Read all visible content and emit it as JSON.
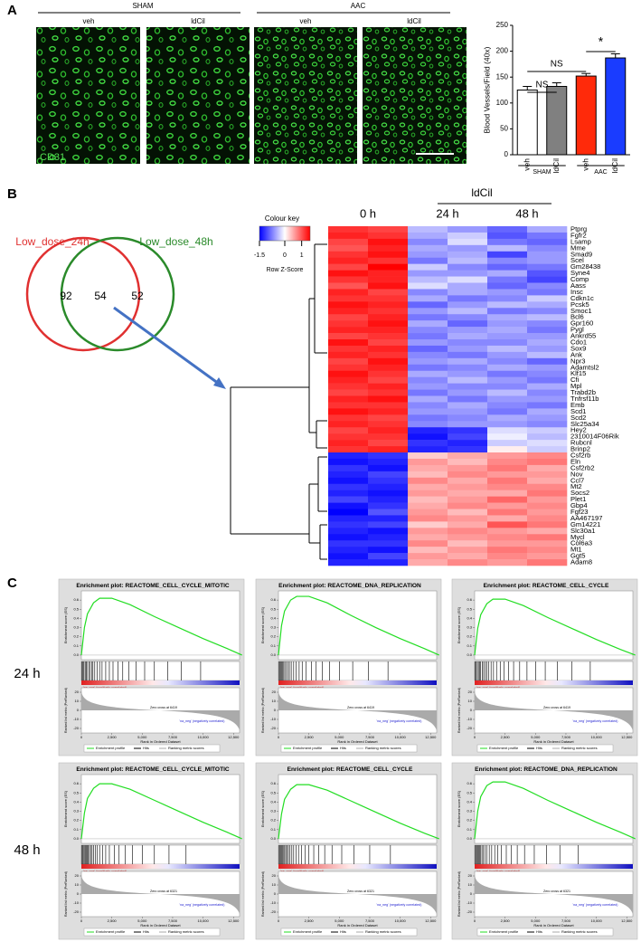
{
  "panel_a": {
    "label": "A",
    "groups": [
      "SHAM",
      "AAC"
    ],
    "images": [
      "veh",
      "ldCil",
      "veh",
      "ldCil"
    ],
    "stain": "CD31"
  },
  "chart_data": {
    "type": "bar",
    "y_label": "Blood Vessels/Field (40x)",
    "categories": [
      "veh",
      "ldCil",
      "veh",
      "ldCil"
    ],
    "values": [
      125,
      132,
      152,
      187
    ],
    "errors": [
      7,
      7,
      5,
      8
    ],
    "colors": [
      "#ffffff",
      "#808080",
      "#ff2a0a",
      "#1a3cff"
    ],
    "group_labels": [
      "SHAM",
      "AAC"
    ],
    "annotations": [
      "NS",
      "NS",
      "*"
    ],
    "ylim": [
      0,
      250
    ],
    "yticks": [
      0,
      50,
      100,
      150,
      200,
      250
    ]
  },
  "panel_b": {
    "label": "B",
    "venn": {
      "sets": [
        "Low_dose_24h",
        "Low_dose_48h"
      ],
      "only_first": "92",
      "both": "54",
      "only_second": "52"
    },
    "key": {
      "title": "Colour key",
      "label": "Row Z-Score",
      "lim": [
        -1.5,
        1.5
      ],
      "ticks": [
        -1.5,
        0,
        1
      ]
    },
    "heatmap": {
      "treatment": "ldCil",
      "columns": [
        "0 h",
        "24 h",
        "48 h"
      ],
      "genes": [
        "Ptprg",
        "Fgfr2",
        "Lsamp",
        "Mme",
        "Smad9",
        "Scel",
        "Gm28438",
        "Syne4",
        "Comp",
        "Aass",
        "Insc",
        "Cdkn1c",
        "Pcsk5",
        "Smoc1",
        "Bcl6",
        "Gpr160",
        "Pygl",
        "Ankrd55",
        "Cdo1",
        "Sox9",
        "Ank",
        "Npr3",
        "Adamtsl2",
        "Klf15",
        "Cfi",
        "Mpl",
        "Trabd2b",
        "Tnfrsf11b",
        "Emb",
        "Scd1",
        "Scd2",
        "Slc25a34",
        "Hey2",
        "2310014F06Rik",
        "Rubcnl",
        "Brinp2",
        "Csf2rb",
        "Eln",
        "Csf2rb2",
        "Nov",
        "Ccl7",
        "Mt2",
        "Socs2",
        "Plet1",
        "Gbp4",
        "Fgf23",
        "AA467197",
        "Gm14221",
        "Slc30a1",
        "Mycl",
        "Col6a3",
        "Mt1",
        "Ggt5",
        "Adam8"
      ],
      "values": [
        [
          1.2,
          1.1,
          -0.4,
          -0.6,
          -0.9,
          -0.5
        ],
        [
          1.3,
          1.2,
          -0.5,
          -0.3,
          -1.0,
          -0.8
        ],
        [
          1.1,
          1.4,
          -0.7,
          -0.2,
          -0.8,
          -0.9
        ],
        [
          1.0,
          1.3,
          -0.5,
          -0.6,
          -0.4,
          -0.7
        ],
        [
          1.2,
          1.4,
          -0.6,
          -0.5,
          -1.1,
          -0.6
        ],
        [
          1.3,
          1.2,
          -0.8,
          -0.4,
          -0.7,
          -0.6
        ],
        [
          1.1,
          1.5,
          -0.3,
          -0.7,
          -0.9,
          -0.8
        ],
        [
          1.4,
          1.3,
          -0.6,
          -0.6,
          -0.5,
          -1.0
        ],
        [
          1.2,
          1.3,
          -0.4,
          -0.2,
          -0.8,
          -1.1
        ],
        [
          1.0,
          1.4,
          -0.2,
          -0.5,
          -0.9,
          -0.7
        ],
        [
          1.3,
          1.1,
          -0.7,
          -0.5,
          -0.6,
          -0.8
        ],
        [
          1.2,
          1.2,
          -0.5,
          -0.8,
          -0.7,
          -0.3
        ],
        [
          1.4,
          1.3,
          -0.9,
          -0.6,
          -0.4,
          -0.5
        ],
        [
          1.3,
          1.2,
          -0.6,
          -0.4,
          -0.8,
          -0.7
        ],
        [
          1.1,
          1.3,
          -0.8,
          -0.7,
          -0.5,
          -0.4
        ],
        [
          1.2,
          1.4,
          -0.5,
          -0.9,
          -0.6,
          -0.7
        ],
        [
          1.3,
          1.3,
          -0.7,
          -0.6,
          -0.5,
          -0.8
        ],
        [
          1.1,
          1.2,
          -0.8,
          -0.5,
          -0.6,
          -0.6
        ],
        [
          1.4,
          1.1,
          -0.6,
          -0.7,
          -0.7,
          -0.5
        ],
        [
          1.2,
          1.3,
          -0.9,
          -0.6,
          -0.4,
          -0.6
        ],
        [
          1.3,
          1.2,
          -0.7,
          -0.8,
          -0.6,
          -0.4
        ],
        [
          1.1,
          1.4,
          -0.6,
          -0.5,
          -0.7,
          -0.9
        ],
        [
          1.2,
          1.3,
          -0.8,
          -0.7,
          -0.5,
          -0.6
        ],
        [
          1.4,
          1.2,
          -0.5,
          -0.6,
          -0.8,
          -0.7
        ],
        [
          1.3,
          1.1,
          -0.7,
          -0.4,
          -0.6,
          -0.8
        ],
        [
          1.2,
          1.3,
          -0.6,
          -0.7,
          -0.7,
          -0.5
        ],
        [
          1.1,
          1.2,
          -0.8,
          -0.6,
          -0.4,
          -0.7
        ],
        [
          1.3,
          1.4,
          -0.5,
          -0.8,
          -0.6,
          -0.6
        ],
        [
          1.2,
          1.2,
          -0.7,
          -0.5,
          -0.7,
          -0.8
        ],
        [
          1.4,
          1.3,
          -0.6,
          -0.6,
          -0.8,
          -0.5
        ],
        [
          1.2,
          1.1,
          -0.8,
          -0.7,
          -0.5,
          -0.6
        ],
        [
          1.3,
          1.2,
          -0.7,
          -0.6,
          -0.6,
          -0.7
        ],
        [
          1.1,
          1.3,
          -1.3,
          -1.2,
          -0.2,
          -0.3
        ],
        [
          1.2,
          1.2,
          -1.4,
          -1.1,
          -0.1,
          -0.4
        ],
        [
          1.3,
          1.1,
          -1.2,
          -1.3,
          -0.3,
          -0.2
        ],
        [
          1.2,
          1.3,
          -1.3,
          -1.2,
          0.1,
          -0.3
        ],
        [
          -1.3,
          -1.2,
          0.3,
          0.5,
          0.6,
          0.7
        ],
        [
          -1.4,
          -1.3,
          0.6,
          0.4,
          0.7,
          0.8
        ],
        [
          -1.2,
          -1.4,
          0.5,
          0.6,
          0.8,
          0.5
        ],
        [
          -1.3,
          -1.1,
          0.4,
          0.7,
          0.6,
          0.6
        ],
        [
          -1.4,
          -1.2,
          0.7,
          0.5,
          0.8,
          0.5
        ],
        [
          -1.2,
          -1.3,
          0.5,
          0.6,
          0.7,
          0.7
        ],
        [
          -1.3,
          -1.4,
          0.6,
          0.5,
          0.5,
          0.8
        ],
        [
          -1.1,
          -1.3,
          0.4,
          0.6,
          0.9,
          0.6
        ],
        [
          -1.4,
          -1.2,
          0.5,
          0.7,
          0.6,
          0.7
        ],
        [
          -1.5,
          -1.0,
          0.6,
          0.4,
          0.8,
          0.6
        ],
        [
          -1.3,
          -1.3,
          0.7,
          0.6,
          0.5,
          0.7
        ],
        [
          -1.2,
          -1.1,
          0.3,
          0.5,
          1.0,
          0.8
        ],
        [
          -1.3,
          -1.4,
          0.6,
          0.7,
          0.6,
          0.5
        ],
        [
          -1.4,
          -1.3,
          0.5,
          0.6,
          0.7,
          0.8
        ],
        [
          -1.2,
          -1.2,
          0.7,
          0.4,
          0.6,
          0.6
        ],
        [
          -1.3,
          -1.4,
          0.4,
          0.6,
          0.8,
          0.7
        ],
        [
          -1.4,
          -1.1,
          0.6,
          0.5,
          0.7,
          0.6
        ],
        [
          -1.3,
          -1.3,
          0.5,
          0.7,
          0.6,
          0.8
        ]
      ]
    }
  },
  "gsea": {
    "label": "C",
    "row_labels": [
      "24 h",
      "48 h"
    ],
    "common": {
      "es_label": "Enrichment score (ES)",
      "metric_label": "Ranked list metric (PreRanked)",
      "x_label": "Rank in Ordered Dataset",
      "pos_label": "'na_pos' (positively correlated)",
      "neg_label": "'na_neg' (negatively correlated)",
      "legend": [
        "Enrichment profile",
        "Hits",
        "Ranking metric scores"
      ],
      "xlim": [
        0,
        13000
      ],
      "xticks": [
        0,
        {
          "value": 2500,
          "label": "2,500"
        },
        {
          "value": 5000,
          "label": "5,000"
        },
        {
          "value": 7500,
          "label": "7,500"
        },
        {
          "value": 10000,
          "label": "10,000"
        },
        {
          "value": 12500,
          "label": "12,500"
        }
      ],
      "es_ylim": [
        -0.05,
        0.7
      ],
      "es_ticks": [
        {
          "value": 0,
          "label": "0.0"
        },
        {
          "value": 0.1,
          "label": "0.1"
        },
        {
          "value": 0.2,
          "label": "0.2"
        },
        {
          "value": 0.3,
          "label": "0.3"
        },
        {
          "value": 0.4,
          "label": "0.4"
        },
        {
          "value": 0.5,
          "label": "0.5"
        },
        {
          "value": 0.6,
          "label": "0.6"
        }
      ],
      "metric_ylim": [
        -25,
        25
      ],
      "metric_ticks": [
        20,
        10,
        0,
        -10,
        -20
      ]
    },
    "plots": [
      {
        "title": "Enrichment plot: REACTOME_CELL_CYCLE_MITOTIC",
        "zero_cross": "Zero cross at 6419",
        "es_x": [
          0,
          250,
          500,
          1000,
          1500,
          2500,
          4000,
          6000,
          8000,
          10000,
          12000,
          13200
        ],
        "es": [
          0,
          0.3,
          0.45,
          0.57,
          0.62,
          0.62,
          0.55,
          0.42,
          0.3,
          0.18,
          0.07,
          0
        ],
        "hits": [
          40,
          120,
          200,
          300,
          380,
          450,
          600,
          700,
          850,
          950,
          1100,
          1300,
          1500,
          1700,
          2000,
          2300,
          2600,
          3000,
          3400,
          3900,
          4500,
          5200,
          6000,
          7100,
          8200,
          9800
        ]
      },
      {
        "title": "Enrichment plot: REACTOME_DNA_REPLICATION",
        "zero_cross": "Zero cross at 6419",
        "es_x": [
          0,
          250,
          500,
          1000,
          1500,
          2500,
          4000,
          6000,
          8000,
          10000,
          12000,
          13200
        ],
        "es": [
          0,
          0.32,
          0.48,
          0.6,
          0.64,
          0.64,
          0.57,
          0.43,
          0.3,
          0.18,
          0.07,
          0
        ],
        "hits": [
          30,
          100,
          180,
          260,
          350,
          430,
          520,
          650,
          780,
          900,
          1050,
          1250,
          1450,
          1700,
          1950,
          2250,
          2700,
          3100,
          3600,
          4200,
          5000,
          6100,
          7400,
          9000
        ]
      },
      {
        "title": "Enrichment plot: REACTOME_CELL_CYCLE",
        "zero_cross": "Zero cross at 6419",
        "es_x": [
          0,
          250,
          500,
          1000,
          1500,
          2500,
          4000,
          6000,
          8000,
          10000,
          12000,
          13200
        ],
        "es": [
          0,
          0.29,
          0.44,
          0.56,
          0.61,
          0.61,
          0.54,
          0.41,
          0.29,
          0.17,
          0.06,
          0
        ],
        "hits": [
          50,
          130,
          220,
          310,
          400,
          480,
          620,
          740,
          880,
          1000,
          1150,
          1350,
          1550,
          1800,
          2100,
          2400,
          2800,
          3200,
          3700,
          4300,
          5000,
          5800,
          6800,
          8000,
          9500
        ]
      },
      {
        "title": "Enrichment plot: REACTOME_CELL_CYCLE_MITOTIC",
        "zero_cross": "Zero cross at 6321",
        "es_x": [
          0,
          250,
          500,
          1000,
          1500,
          2500,
          4000,
          6000,
          8000,
          10000,
          12000,
          13200
        ],
        "es": [
          0,
          0.28,
          0.44,
          0.55,
          0.6,
          0.6,
          0.54,
          0.42,
          0.3,
          0.18,
          0.07,
          0
        ],
        "hits": [
          20,
          90,
          160,
          240,
          320,
          400,
          480,
          560,
          660,
          760,
          880,
          1000,
          1150,
          1300,
          1500,
          1750,
          2000,
          2300,
          2700,
          3100,
          3600,
          4200,
          5000,
          6000,
          7200,
          8600
        ]
      },
      {
        "title": "Enrichment plot: REACTOME_CELL_CYCLE",
        "zero_cross": "Zero cross at 6321",
        "es_x": [
          0,
          250,
          500,
          1000,
          1500,
          2500,
          4000,
          6000,
          8000,
          10000,
          12000,
          13200
        ],
        "es": [
          0,
          0.27,
          0.43,
          0.54,
          0.59,
          0.59,
          0.53,
          0.41,
          0.29,
          0.17,
          0.06,
          0
        ],
        "hits": [
          30,
          110,
          190,
          270,
          350,
          430,
          510,
          600,
          700,
          820,
          950,
          1100,
          1250,
          1450,
          1650,
          1900,
          2200,
          2500,
          2900,
          3300,
          3800,
          4400,
          5200,
          6200,
          7500,
          9200
        ]
      },
      {
        "title": "Enrichment plot: REACTOME_DNA_REPLICATION",
        "zero_cross": "Zero cross at 6321",
        "es_x": [
          0,
          250,
          500,
          1000,
          1500,
          2500,
          4000,
          6000,
          8000,
          10000,
          12000,
          13200
        ],
        "es": [
          0,
          0.3,
          0.46,
          0.58,
          0.62,
          0.62,
          0.55,
          0.42,
          0.3,
          0.18,
          0.07,
          0
        ],
        "hits": [
          25,
          95,
          170,
          250,
          330,
          410,
          500,
          600,
          720,
          850,
          1000,
          1200,
          1400,
          1650,
          1900,
          2200,
          2600,
          3000,
          3500,
          4100,
          4900,
          5900,
          7000,
          8500
        ]
      }
    ]
  }
}
